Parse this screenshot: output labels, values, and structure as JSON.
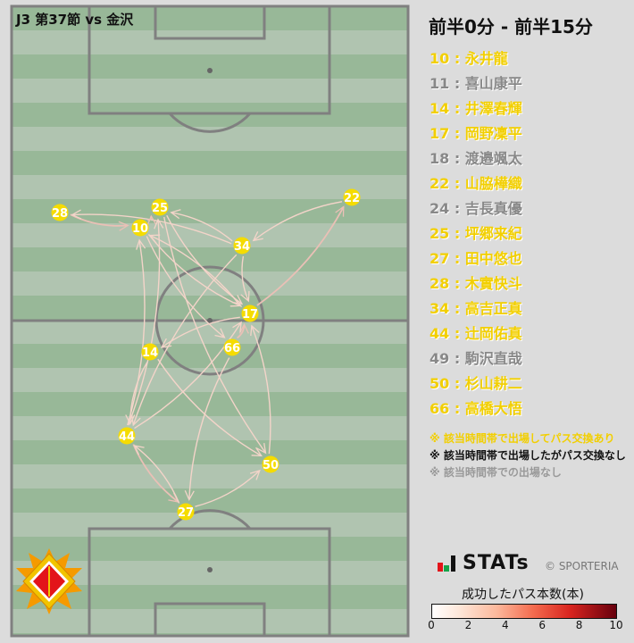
{
  "match_title": "J3 第37節 vs 金沢",
  "period": "前半0分 - 前半15分",
  "colors": {
    "active": "#f2cf00",
    "inactive": "#888888",
    "pitch_dark": "#98b898",
    "pitch_light": "#b0c4b0",
    "line": "#808080",
    "node": "#f5dc00"
  },
  "players": [
    {
      "label": "10 : 永井龍",
      "status": "active"
    },
    {
      "label": "11 : 喜山康平",
      "status": "inactive"
    },
    {
      "label": "14 : 井澤春輝",
      "status": "active"
    },
    {
      "label": "17 : 岡野凜平",
      "status": "active"
    },
    {
      "label": "18 : 渡邉颯太",
      "status": "inactive"
    },
    {
      "label": "22 : 山脇樺織",
      "status": "active"
    },
    {
      "label": "24 : 吉長真優",
      "status": "inactive"
    },
    {
      "label": "25 : 坪郷来紀",
      "status": "active"
    },
    {
      "label": "27 : 田中悠也",
      "status": "active"
    },
    {
      "label": "28 : 木實快斗",
      "status": "active"
    },
    {
      "label": "34 : 高吉正真",
      "status": "active"
    },
    {
      "label": "44 : 辻岡佑真",
      "status": "active"
    },
    {
      "label": "49 : 駒沢直哉",
      "status": "inactive"
    },
    {
      "label": "50 : 杉山耕二",
      "status": "active"
    },
    {
      "label": "66 : 高橋大悟",
      "status": "active"
    }
  ],
  "notes": [
    {
      "text": "※ 該当時間帯で出場してパス交換あり",
      "color": "#f2cf00"
    },
    {
      "text": "※ 該当時間帯で出場したがパス交換なし",
      "color": "#111111"
    },
    {
      "text": "※ 該当時間帯での出場なし",
      "color": "#999999"
    }
  ],
  "brand": "STATs",
  "copyright": "© SPORTERIA",
  "legend": {
    "title": "成功したパス本数(本)",
    "ticks": [
      "0",
      "2",
      "4",
      "6",
      "8",
      "10"
    ],
    "min": 0,
    "max": 10
  },
  "nodes": [
    "28",
    "25",
    "10",
    "22",
    "34",
    "17",
    "14",
    "66",
    "44",
    "50",
    "27"
  ],
  "passes": [
    {
      "from": "28",
      "to": "10",
      "count": 2
    },
    {
      "from": "34",
      "to": "28",
      "count": 1
    },
    {
      "from": "10",
      "to": "25",
      "count": 2
    },
    {
      "from": "34",
      "to": "25",
      "count": 1
    },
    {
      "from": "22",
      "to": "34",
      "count": 1
    },
    {
      "from": "34",
      "to": "17",
      "count": 1
    },
    {
      "from": "17",
      "to": "22",
      "count": 2
    },
    {
      "from": "10",
      "to": "17",
      "count": 1
    },
    {
      "from": "25",
      "to": "17",
      "count": 1
    },
    {
      "from": "10",
      "to": "66",
      "count": 1
    },
    {
      "from": "17",
      "to": "14",
      "count": 1
    },
    {
      "from": "44",
      "to": "10",
      "count": 1
    },
    {
      "from": "44",
      "to": "25",
      "count": 1
    },
    {
      "from": "66",
      "to": "17",
      "count": 2
    },
    {
      "from": "44",
      "to": "17",
      "count": 1
    },
    {
      "from": "14",
      "to": "50",
      "count": 1
    },
    {
      "from": "66",
      "to": "27",
      "count": 1
    },
    {
      "from": "50",
      "to": "17",
      "count": 1
    },
    {
      "from": "34",
      "to": "44",
      "count": 1
    },
    {
      "from": "14",
      "to": "44",
      "count": 1
    },
    {
      "from": "44",
      "to": "27",
      "count": 2
    },
    {
      "from": "27",
      "to": "44",
      "count": 1
    },
    {
      "from": "27",
      "to": "50",
      "count": 1
    },
    {
      "from": "25",
      "to": "50",
      "count": 1
    },
    {
      "from": "17",
      "to": "10",
      "count": 1
    }
  ]
}
